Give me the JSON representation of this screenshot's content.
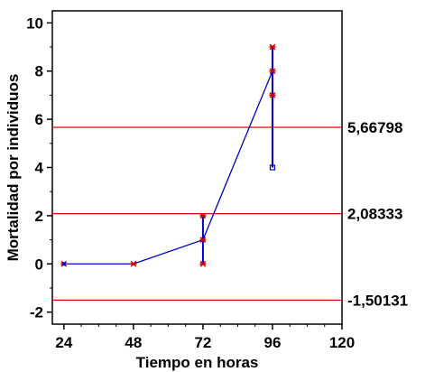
{
  "chart_data": {
    "type": "scatter",
    "xlabel": "Tiempo en horas",
    "ylabel": "Mortalidad por individuos",
    "xlim": [
      20,
      120
    ],
    "ylim": [
      -2.5,
      10.5
    ],
    "x_ticks": [
      24,
      48,
      72,
      96,
      120
    ],
    "y_ticks": [
      -2,
      0,
      2,
      4,
      6,
      8,
      10
    ],
    "grid": false,
    "points": [
      {
        "x": 24,
        "y": 0
      },
      {
        "x": 48,
        "y": 0
      },
      {
        "x": 72,
        "y": 0
      },
      {
        "x": 72,
        "y": 1
      },
      {
        "x": 72,
        "y": 2
      },
      {
        "x": 96,
        "y": 7
      },
      {
        "x": 96,
        "y": 8
      },
      {
        "x": 96,
        "y": 9
      }
    ],
    "mean_line": {
      "x": [
        24,
        48,
        72,
        96
      ],
      "y": [
        0,
        0,
        1,
        8
      ]
    },
    "range_bars": [
      {
        "x": 24,
        "low": 0,
        "high": 0
      },
      {
        "x": 48,
        "low": 0,
        "high": 0
      },
      {
        "x": 72,
        "low": 0,
        "high": 2
      },
      {
        "x": 96,
        "low": 4,
        "high": 9
      }
    ],
    "outlier_squares": [
      {
        "x": 96,
        "y": 4
      }
    ],
    "control_limits": [
      {
        "value": 5.66798,
        "label": "5,66798"
      },
      {
        "value": 2.08333,
        "label": "2,08333"
      },
      {
        "value": -1.50131,
        "label": "-1,50131"
      }
    ],
    "colors": {
      "series": "#0000cc",
      "markers": "#cc0000",
      "limits": "#ee0000",
      "axes": "#000000"
    }
  }
}
